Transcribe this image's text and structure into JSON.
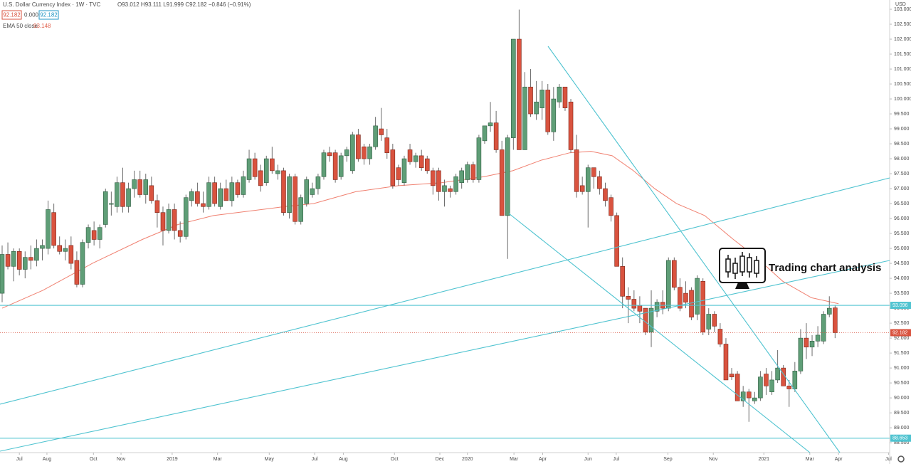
{
  "chart_data": {
    "type": "candlestick",
    "title": "U.S. Dollar Currency Index · 1W · TVC",
    "ohlc_header": "O93.012 H93.111 L91.999 C92.182 −0.846 (−0.91%)",
    "header_badges": [
      "92.182",
      "0.000",
      "92.182"
    ],
    "currency": "USD",
    "ema": {
      "name": "EMA 50 close",
      "value": 93.148,
      "color": "#f08070",
      "x": [
        0,
        7.1,
        15.7,
        24.4,
        30.6,
        36.8,
        49.2,
        54.2,
        61.6,
        69.0,
        76.5,
        83.9,
        88.9,
        93.8,
        98.8,
        102.5,
        106.2,
        109.9,
        113.6,
        117.4,
        122.3,
        127.3,
        131.0,
        135.9,
        140.9,
        145.6
      ],
      "values": [
        93.0,
        93.6,
        94.5,
        95.3,
        95.8,
        96.1,
        96.4,
        96.5,
        96.9,
        97.1,
        97.2,
        97.4,
        97.6,
        97.95,
        98.2,
        98.25,
        98.1,
        97.6,
        97.0,
        96.5,
        96.1,
        95.3,
        94.75,
        93.9,
        93.35,
        93.15
      ]
    },
    "up_color": "#5f9e77",
    "down_color": "#d9533f",
    "level_color": "#4fc3d0",
    "levels": [
      93.096,
      88.653
    ],
    "annotation": "Trading chart analysis",
    "ylim": [
      88.17,
      103.31
    ],
    "yticks": [
      {
        "value": 88.5,
        "label": "88.500"
      },
      {
        "value": 89,
        "label": "89.000"
      },
      {
        "value": 89.5,
        "label": "89.500"
      },
      {
        "value": 90,
        "label": "90.000"
      },
      {
        "value": 90.5,
        "label": "90.500"
      },
      {
        "value": 91,
        "label": "91.000"
      },
      {
        "value": 91.5,
        "label": "91.500"
      },
      {
        "value": 92,
        "label": "92.000"
      },
      {
        "value": 92.5,
        "label": "92.500"
      },
      {
        "value": 93,
        "label": "93.000"
      },
      {
        "value": 93.5,
        "label": "93.500"
      },
      {
        "value": 94,
        "label": "94.000"
      },
      {
        "value": 94.5,
        "label": "94.500"
      },
      {
        "value": 95,
        "label": "95.000"
      },
      {
        "value": 95.5,
        "label": "95.500"
      },
      {
        "value": 96,
        "label": "96.000"
      },
      {
        "value": 96.5,
        "label": "96.500"
      },
      {
        "value": 97,
        "label": "97.000"
      },
      {
        "value": 97.5,
        "label": "97.500"
      },
      {
        "value": 98,
        "label": "98.000"
      },
      {
        "value": 98.5,
        "label": "98.500"
      },
      {
        "value": 99,
        "label": "99.000"
      },
      {
        "value": 99.5,
        "label": "99.500"
      },
      {
        "value": 100,
        "label": "100.000"
      },
      {
        "value": 100.5,
        "label": "100.500"
      },
      {
        "value": 101,
        "label": "101.000"
      },
      {
        "value": 101.5,
        "label": "101.500"
      },
      {
        "value": 102,
        "label": "102.000"
      },
      {
        "value": 102.5,
        "label": "102.500"
      },
      {
        "value": 103,
        "label": "103.000"
      }
    ],
    "xlim": [
      -0.37,
      154.5
    ],
    "xticks": [
      {
        "value": 3.0,
        "label": "Jul"
      },
      {
        "value": 7.8,
        "label": "Aug"
      },
      {
        "value": 15.9,
        "label": "Oct"
      },
      {
        "value": 20.7,
        "label": "Nov"
      },
      {
        "value": 29.6,
        "label": "2019"
      },
      {
        "value": 37.5,
        "label": "Mar"
      },
      {
        "value": 46.5,
        "label": "May"
      },
      {
        "value": 54.4,
        "label": "Jul"
      },
      {
        "value": 59.4,
        "label": "Aug"
      },
      {
        "value": 68.3,
        "label": "Oct"
      },
      {
        "value": 76.2,
        "label": "Dec"
      },
      {
        "value": 81.0,
        "label": "2020"
      },
      {
        "value": 89.1,
        "label": "Mar"
      },
      {
        "value": 94.1,
        "label": "Apr"
      },
      {
        "value": 102.0,
        "label": "Jun"
      },
      {
        "value": 106.9,
        "label": "Jul"
      },
      {
        "value": 115.9,
        "label": "Sep"
      },
      {
        "value": 123.8,
        "label": "Nov"
      },
      {
        "value": 132.6,
        "label": "2021"
      },
      {
        "value": 140.6,
        "label": "Mar"
      },
      {
        "value": 145.6,
        "label": "Apr"
      },
      {
        "value": 154.3,
        "label": "Jul"
      }
    ],
    "ohlc": [
      [
        93.5,
        95.1,
        93.2,
        94.8
      ],
      [
        94.8,
        95.2,
        94.3,
        94.4
      ],
      [
        94.4,
        95.0,
        93.9,
        94.9
      ],
      [
        94.9,
        95.0,
        94.1,
        94.3
      ],
      [
        94.3,
        94.9,
        94.0,
        94.7
      ],
      [
        94.7,
        95.1,
        94.3,
        94.6
      ],
      [
        94.6,
        95.3,
        94.4,
        95.0
      ],
      [
        95.0,
        95.3,
        94.6,
        95.1
      ],
      [
        95.0,
        96.6,
        94.8,
        96.3
      ],
      [
        96.2,
        96.5,
        95.0,
        95.1
      ],
      [
        95.1,
        95.4,
        94.8,
        94.9
      ],
      [
        94.9,
        95.3,
        94.6,
        95.0
      ],
      [
        95.1,
        95.4,
        94.3,
        94.5
      ],
      [
        94.6,
        94.9,
        93.7,
        93.8
      ],
      [
        93.8,
        95.3,
        93.7,
        95.2
      ],
      [
        95.2,
        95.8,
        95.0,
        95.7
      ],
      [
        95.6,
        95.9,
        95.1,
        95.3
      ],
      [
        95.3,
        95.8,
        95.0,
        95.7
      ],
      [
        95.8,
        97.0,
        95.7,
        96.9
      ],
      [
        96.5,
        96.9,
        96.1,
        96.5
      ],
      [
        96.4,
        97.4,
        96.2,
        97.2
      ],
      [
        97.2,
        97.7,
        96.2,
        96.4
      ],
      [
        96.4,
        97.2,
        96.2,
        97.0
      ],
      [
        97.0,
        97.6,
        96.7,
        97.3
      ],
      [
        97.3,
        97.6,
        96.7,
        96.8
      ],
      [
        96.8,
        97.5,
        96.5,
        97.3
      ],
      [
        97.1,
        97.4,
        96.5,
        96.6
      ],
      [
        96.6,
        96.8,
        95.7,
        96.2
      ],
      [
        96.2,
        96.4,
        95.1,
        95.6
      ],
      [
        95.6,
        96.5,
        95.5,
        96.3
      ],
      [
        96.3,
        96.5,
        95.3,
        95.6
      ],
      [
        95.6,
        95.9,
        95.2,
        95.4
      ],
      [
        95.4,
        96.8,
        95.3,
        96.7
      ],
      [
        96.6,
        97.0,
        96.4,
        96.9
      ],
      [
        96.9,
        97.2,
        96.4,
        96.5
      ],
      [
        96.5,
        96.9,
        96.2,
        96.4
      ],
      [
        96.4,
        97.4,
        96.3,
        97.2
      ],
      [
        97.2,
        97.4,
        96.4,
        96.5
      ],
      [
        96.4,
        97.2,
        96.3,
        97.0
      ],
      [
        97.0,
        97.3,
        96.6,
        96.6
      ],
      [
        96.6,
        97.4,
        96.4,
        97.2
      ],
      [
        97.2,
        97.3,
        96.7,
        96.8
      ],
      [
        96.8,
        97.6,
        96.7,
        97.4
      ],
      [
        97.3,
        98.3,
        97.2,
        98.0
      ],
      [
        98.0,
        98.2,
        97.3,
        97.4
      ],
      [
        97.6,
        97.8,
        96.9,
        97.1
      ],
      [
        97.2,
        98.1,
        97.1,
        98.0
      ],
      [
        98.0,
        98.4,
        97.5,
        97.6
      ],
      [
        97.5,
        97.8,
        97.3,
        97.6
      ],
      [
        97.6,
        97.7,
        96.1,
        96.2
      ],
      [
        96.2,
        97.5,
        96.0,
        97.4
      ],
      [
        97.4,
        97.5,
        95.8,
        95.9
      ],
      [
        95.9,
        96.8,
        95.8,
        96.7
      ],
      [
        96.5,
        97.4,
        96.4,
        97.3
      ],
      [
        96.8,
        97.2,
        96.7,
        97.0
      ],
      [
        97.0,
        97.5,
        96.8,
        97.4
      ],
      [
        97.4,
        98.3,
        97.3,
        98.2
      ],
      [
        98.2,
        98.4,
        97.9,
        98.1
      ],
      [
        98.2,
        98.3,
        97.2,
        97.3
      ],
      [
        97.4,
        98.2,
        97.3,
        98.1
      ],
      [
        98.1,
        98.4,
        97.9,
        98.3
      ],
      [
        97.6,
        98.9,
        97.5,
        98.8
      ],
      [
        98.8,
        99.0,
        97.9,
        98.0
      ],
      [
        98.4,
        98.5,
        97.8,
        98.0
      ],
      [
        98.0,
        98.5,
        97.8,
        98.4
      ],
      [
        98.4,
        99.4,
        98.3,
        99.1
      ],
      [
        99.0,
        99.7,
        98.6,
        98.8
      ],
      [
        98.7,
        99.0,
        98.0,
        98.2
      ],
      [
        98.3,
        98.5,
        97.0,
        97.1
      ],
      [
        97.7,
        97.8,
        97.1,
        97.3
      ],
      [
        97.2,
        98.1,
        97.1,
        98.0
      ],
      [
        98.3,
        98.5,
        97.8,
        97.9
      ],
      [
        97.9,
        98.2,
        97.7,
        98.1
      ],
      [
        98.1,
        98.3,
        97.6,
        97.7
      ],
      [
        98.0,
        98.1,
        97.5,
        97.6
      ],
      [
        97.6,
        97.7,
        96.8,
        97.1
      ],
      [
        97.6,
        97.7,
        96.6,
        96.9
      ],
      [
        96.9,
        97.3,
        96.4,
        97.1
      ],
      [
        97.0,
        97.1,
        96.7,
        96.9
      ],
      [
        96.9,
        97.5,
        96.8,
        97.4
      ],
      [
        97.2,
        97.7,
        97.0,
        97.6
      ],
      [
        97.3,
        97.9,
        97.2,
        97.8
      ],
      [
        97.8,
        97.9,
        97.2,
        97.3
      ],
      [
        97.3,
        98.8,
        97.2,
        98.7
      ],
      [
        98.6,
        99.1,
        98.5,
        99.1
      ],
      [
        99.1,
        99.9,
        98.9,
        99.2
      ],
      [
        99.2,
        99.6,
        98.2,
        98.3
      ],
      [
        98.3,
        98.6,
        96.1,
        96.1
      ],
      [
        96.1,
        98.8,
        94.65,
        98.7
      ],
      [
        98.7,
        102.0,
        98.3,
        102.0
      ],
      [
        102.0,
        102.99,
        98.3,
        98.3
      ],
      [
        98.3,
        100.9,
        98.3,
        100.4
      ],
      [
        100.4,
        101.0,
        99.4,
        99.5
      ],
      [
        99.5,
        100.6,
        99.3,
        99.9
      ],
      [
        99.7,
        100.6,
        99.3,
        100.3
      ],
      [
        100.3,
        100.5,
        98.8,
        98.9
      ],
      [
        98.9,
        100.4,
        98.6,
        100.0
      ],
      [
        99.9,
        100.5,
        99.7,
        100.4
      ],
      [
        100.4,
        100.4,
        99.6,
        99.7
      ],
      [
        99.9,
        100.0,
        98.2,
        98.3
      ],
      [
        98.3,
        98.8,
        96.7,
        96.9
      ],
      [
        97.1,
        97.4,
        96.8,
        96.9
      ],
      [
        96.9,
        97.8,
        95.7,
        97.7
      ],
      [
        97.7,
        97.7,
        97.0,
        97.4
      ],
      [
        97.4,
        97.6,
        96.8,
        97.0
      ],
      [
        97.0,
        97.2,
        96.4,
        96.6
      ],
      [
        96.7,
        96.8,
        95.9,
        96.1
      ],
      [
        96.1,
        96.2,
        94.4,
        94.4
      ],
      [
        94.4,
        94.7,
        93.0,
        93.4
      ],
      [
        93.4,
        93.7,
        92.5,
        93.3
      ],
      [
        93.3,
        93.6,
        92.9,
        93.0
      ],
      [
        93.1,
        93.4,
        92.5,
        92.9
      ],
      [
        93.0,
        93.0,
        92.1,
        92.2
      ],
      [
        92.2,
        93.6,
        91.7,
        93.0
      ],
      [
        92.9,
        93.3,
        92.7,
        93.2
      ],
      [
        93.2,
        93.6,
        92.8,
        93.0
      ],
      [
        93.0,
        94.7,
        92.9,
        94.6
      ],
      [
        94.6,
        94.7,
        93.6,
        93.7
      ],
      [
        93.7,
        94.0,
        92.9,
        93.0
      ],
      [
        93.5,
        93.9,
        93.0,
        93.2
      ],
      [
        93.6,
        93.7,
        92.6,
        92.7
      ],
      [
        92.8,
        94.1,
        92.6,
        94.0
      ],
      [
        93.9,
        94.0,
        92.1,
        92.2
      ],
      [
        92.3,
        93.0,
        92.1,
        92.8
      ],
      [
        92.8,
        92.9,
        92.2,
        92.4
      ],
      [
        92.3,
        92.5,
        91.7,
        91.8
      ],
      [
        91.8,
        92.0,
        90.6,
        90.6
      ],
      [
        90.8,
        91.0,
        90.6,
        90.7
      ],
      [
        90.8,
        90.9,
        89.9,
        89.9
      ],
      [
        89.9,
        90.4,
        89.7,
        90.2
      ],
      [
        90.2,
        90.3,
        89.2,
        90.0
      ],
      [
        89.9,
        90.2,
        89.8,
        90.0
      ],
      [
        90.0,
        90.9,
        89.9,
        90.7
      ],
      [
        90.8,
        91.0,
        90.1,
        90.4
      ],
      [
        90.2,
        90.9,
        90.1,
        90.6
      ],
      [
        90.6,
        91.6,
        90.5,
        91.0
      ],
      [
        91.0,
        91.1,
        90.4,
        90.4
      ],
      [
        90.4,
        90.6,
        89.7,
        90.3
      ],
      [
        90.3,
        91.2,
        90.2,
        90.9
      ],
      [
        90.9,
        92.3,
        90.8,
        92.0
      ],
      [
        92.0,
        92.5,
        91.3,
        91.7
      ],
      [
        91.7,
        92.1,
        91.4,
        91.9
      ],
      [
        91.9,
        92.4,
        91.7,
        92.1
      ],
      [
        91.9,
        92.9,
        91.8,
        92.8
      ],
      [
        92.8,
        93.4,
        92.7,
        93.0
      ],
      [
        93.012,
        93.111,
        91.999,
        92.182
      ]
    ]
  }
}
